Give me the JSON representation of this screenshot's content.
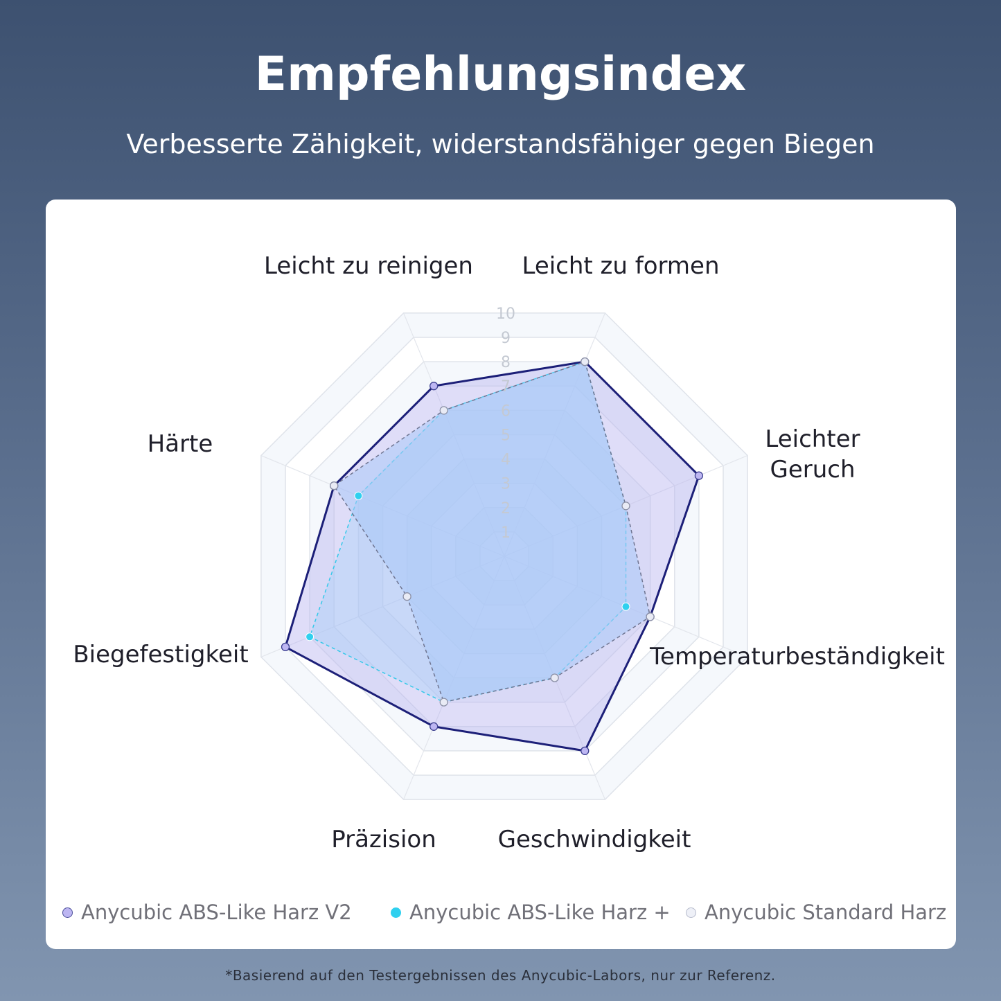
{
  "header": {
    "title": "Empfehlungsindex",
    "subtitle": "Verbesserte Zähigkeit, widerstandsfähiger gegen Biegen"
  },
  "chart_data": {
    "type": "radar",
    "axes": [
      "Leicht zu formen",
      "Leichter Geruch",
      "Temperaturbeständigkeit",
      "Geschwindigkeit",
      "Präzision",
      "Biegefestigkeit",
      "Härte",
      "Leicht zu reinigen"
    ],
    "axis_label_lines": [
      [
        "Leicht zu formen"
      ],
      [
        "Leichter",
        "Geruch"
      ],
      [
        "Temperaturbeständigkeit"
      ],
      [
        "Geschwindigkeit"
      ],
      [
        "Präzision"
      ],
      [
        "Biegefestigkeit"
      ],
      [
        "Härte"
      ],
      [
        "Leicht zu reinigen"
      ]
    ],
    "ticks": [
      "1",
      "2",
      "3",
      "4",
      "5",
      "6",
      "7",
      "8",
      "9",
      "10"
    ],
    "range": [
      0,
      10
    ],
    "series": [
      {
        "name": "Anycubic ABS-Like Harz V2",
        "values": [
          8,
          8,
          6,
          8,
          7,
          9,
          7,
          7
        ],
        "color": "#1c1f78",
        "fill": "#b9b4ef",
        "dot": "#bdb6f2"
      },
      {
        "name": "Anycubic ABS-Like Harz +",
        "values": [
          8,
          5,
          5,
          5,
          6,
          8,
          6,
          6
        ],
        "color": "#35c9e9",
        "fill": "#9fcdf8",
        "dot": "#2fd0ef"
      },
      {
        "name": "Anycubic Standard Harz",
        "values": [
          8,
          5,
          6,
          5,
          6,
          4,
          7,
          6
        ],
        "color": "#6f7591",
        "fill": "#a9c8f7",
        "dot": "#e9ebf5"
      }
    ]
  },
  "footnote": "*Basierend auf den Testergebnissen des Anycubic-Labors, nur zur Referenz."
}
